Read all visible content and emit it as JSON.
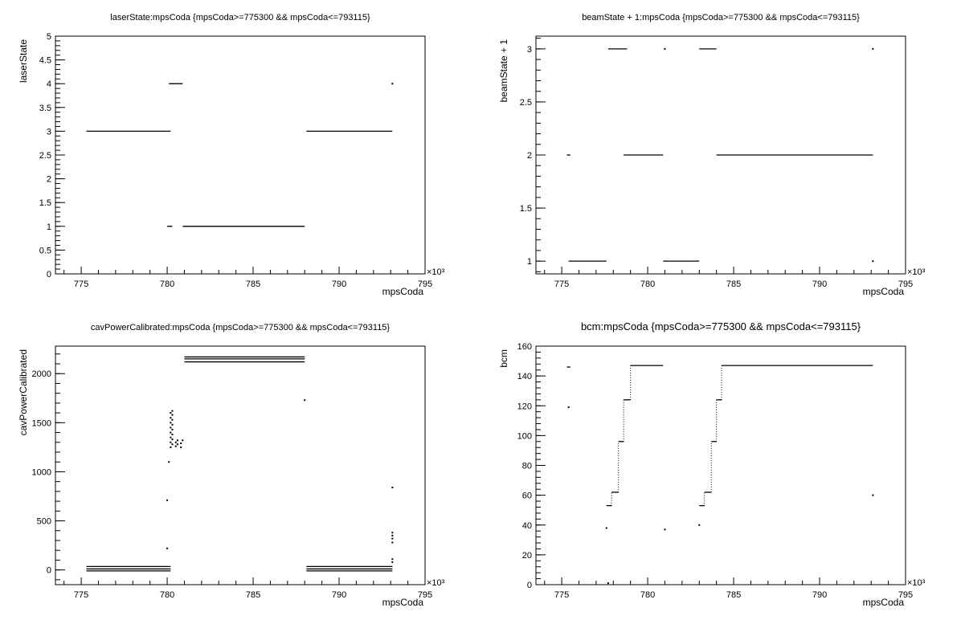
{
  "chart_data": [
    {
      "type": "scatter",
      "title": "laserState:mpsCoda {mpsCoda>=775300 && mpsCoda<=793115}",
      "xlabel": "mpsCoda",
      "ylabel": "laserState",
      "x_exponent": "×10³",
      "xlim": [
        773.5,
        795.0
      ],
      "ylim": [
        0,
        5
      ],
      "x_ticks": [
        "775",
        "780",
        "785",
        "790",
        "795"
      ],
      "y_ticks": [
        "0",
        "0.5",
        "1",
        "1.5",
        "2",
        "2.5",
        "3",
        "3.5",
        "4",
        "4.5",
        "5"
      ],
      "segments": [
        {
          "x": [
            775.3,
            780.2
          ],
          "y": 3
        },
        {
          "x": [
            780.0,
            780.3
          ],
          "y": 1
        },
        {
          "x": [
            780.1,
            780.9
          ],
          "y": 4
        },
        {
          "x": [
            780.9,
            788.0
          ],
          "y": 1
        },
        {
          "x": [
            788.1,
            793.1
          ],
          "y": 3
        }
      ],
      "points": [
        {
          "x": 793.1,
          "y": 4
        }
      ]
    },
    {
      "type": "scatter",
      "title": "beamState + 1:mpsCoda {mpsCoda>=775300 && mpsCoda<=793115}",
      "xlabel": "mpsCoda",
      "ylabel": "beamState + 1",
      "x_exponent": "×10³",
      "xlim": [
        773.5,
        795.0
      ],
      "ylim": [
        0.88,
        3.12
      ],
      "x_ticks": [
        "775",
        "780",
        "785",
        "790",
        "795"
      ],
      "y_ticks": [
        "1",
        "1.5",
        "2",
        "2.5",
        "3"
      ],
      "segments": [
        {
          "x": [
            775.3,
            775.5
          ],
          "y": 2
        },
        {
          "x": [
            775.4,
            777.6
          ],
          "y": 1
        },
        {
          "x": [
            777.7,
            778.8
          ],
          "y": 3
        },
        {
          "x": [
            778.6,
            780.9
          ],
          "y": 2
        },
        {
          "x": [
            780.9,
            783.0
          ],
          "y": 1
        },
        {
          "x": [
            783.0,
            784.0
          ],
          "y": 3
        },
        {
          "x": [
            784.0,
            793.1
          ],
          "y": 2
        }
      ],
      "points": [
        {
          "x": 781.0,
          "y": 3
        },
        {
          "x": 793.1,
          "y": 3
        },
        {
          "x": 793.1,
          "y": 1
        }
      ]
    },
    {
      "type": "scatter",
      "title": "cavPowerCalibrated:mpsCoda {mpsCoda>=775300 && mpsCoda<=793115}",
      "xlabel": "mpsCoda",
      "ylabel": "cavPowerCalibrated",
      "x_exponent": "×10³",
      "xlim": [
        773.5,
        795.0
      ],
      "ylim": [
        -150,
        2280
      ],
      "x_ticks": [
        "775",
        "780",
        "785",
        "790",
        "795"
      ],
      "y_ticks": [
        "0",
        "500",
        "1000",
        "1500",
        "2000"
      ],
      "segments": [
        {
          "x": [
            775.3,
            780.2
          ],
          "y": 35
        },
        {
          "x": [
            775.3,
            780.2
          ],
          "y": 10
        },
        {
          "x": [
            775.3,
            780.2
          ],
          "y": -10
        },
        {
          "x": [
            781.0,
            788.0
          ],
          "y": 2170
        },
        {
          "x": [
            781.0,
            788.0
          ],
          "y": 2150
        },
        {
          "x": [
            781.0,
            788.0
          ],
          "y": 2120
        },
        {
          "x": [
            788.1,
            793.1
          ],
          "y": 35
        },
        {
          "x": [
            788.1,
            793.1
          ],
          "y": 10
        },
        {
          "x": [
            788.1,
            793.1
          ],
          "y": -10
        }
      ],
      "points": [
        {
          "x": 780.0,
          "y": 220
        },
        {
          "x": 780.0,
          "y": 710
        },
        {
          "x": 780.1,
          "y": 1100
        },
        {
          "x": 780.2,
          "y": 1250
        },
        {
          "x": 780.2,
          "y": 1300
        },
        {
          "x": 780.2,
          "y": 1350
        },
        {
          "x": 780.2,
          "y": 1400
        },
        {
          "x": 780.2,
          "y": 1450
        },
        {
          "x": 780.2,
          "y": 1500
        },
        {
          "x": 780.2,
          "y": 1550
        },
        {
          "x": 780.2,
          "y": 1600
        },
        {
          "x": 780.3,
          "y": 1620
        },
        {
          "x": 780.3,
          "y": 1580
        },
        {
          "x": 780.3,
          "y": 1530
        },
        {
          "x": 780.3,
          "y": 1480
        },
        {
          "x": 780.3,
          "y": 1430
        },
        {
          "x": 780.3,
          "y": 1380
        },
        {
          "x": 780.3,
          "y": 1330
        },
        {
          "x": 780.3,
          "y": 1280
        },
        {
          "x": 780.5,
          "y": 1260
        },
        {
          "x": 780.5,
          "y": 1300
        },
        {
          "x": 780.6,
          "y": 1280
        },
        {
          "x": 780.6,
          "y": 1320
        },
        {
          "x": 780.8,
          "y": 1290
        },
        {
          "x": 780.8,
          "y": 1250
        },
        {
          "x": 780.9,
          "y": 1320
        },
        {
          "x": 788.0,
          "y": 1730
        },
        {
          "x": 793.1,
          "y": 840
        },
        {
          "x": 793.1,
          "y": 380
        },
        {
          "x": 793.1,
          "y": 350
        },
        {
          "x": 793.1,
          "y": 320
        },
        {
          "x": 793.1,
          "y": 280
        },
        {
          "x": 793.1,
          "y": 110
        },
        {
          "x": 793.1,
          "y": 80
        }
      ]
    },
    {
      "type": "scatter",
      "title": "bcm:mpsCoda {mpsCoda>=775300 && mpsCoda<=793115}",
      "xlabel": "mpsCoda",
      "ylabel": "bcm",
      "x_exponent": "×10³",
      "xlim": [
        773.5,
        795.0
      ],
      "ylim": [
        0,
        160
      ],
      "x_ticks": [
        "775",
        "780",
        "785",
        "790",
        "795"
      ],
      "y_ticks": [
        "0",
        "20",
        "40",
        "60",
        "80",
        "100",
        "120",
        "140",
        "160"
      ],
      "segments": [
        {
          "x": [
            775.3,
            775.5
          ],
          "y": 146
        },
        {
          "x": [
            777.6,
            777.9
          ],
          "y": 53
        },
        {
          "x": [
            777.9,
            778.3
          ],
          "y": 62
        },
        {
          "x": [
            778.3,
            778.6
          ],
          "y": 96
        },
        {
          "x": [
            778.6,
            779.0
          ],
          "y": 124
        },
        {
          "x": [
            779.0,
            780.9
          ],
          "y": 147
        },
        {
          "x": [
            783.0,
            783.3
          ],
          "y": 53
        },
        {
          "x": [
            783.3,
            783.7
          ],
          "y": 62
        },
        {
          "x": [
            783.7,
            784.0
          ],
          "y": 96
        },
        {
          "x": [
            784.0,
            784.3
          ],
          "y": 124
        },
        {
          "x": [
            784.3,
            793.1
          ],
          "y": 147
        }
      ],
      "verticals": [
        {
          "x": 777.9,
          "y": [
            53,
            62
          ]
        },
        {
          "x": 778.3,
          "y": [
            62,
            96
          ]
        },
        {
          "x": 778.6,
          "y": [
            96,
            124
          ]
        },
        {
          "x": 779.0,
          "y": [
            124,
            147
          ]
        },
        {
          "x": 783.3,
          "y": [
            53,
            62
          ]
        },
        {
          "x": 783.7,
          "y": [
            62,
            96
          ]
        },
        {
          "x": 784.0,
          "y": [
            96,
            124
          ]
        },
        {
          "x": 784.3,
          "y": [
            124,
            147
          ]
        }
      ],
      "points": [
        {
          "x": 775.4,
          "y": 119
        },
        {
          "x": 777.6,
          "y": 38
        },
        {
          "x": 777.7,
          "y": 1
        },
        {
          "x": 781.0,
          "y": 37
        },
        {
          "x": 783.0,
          "y": 40
        },
        {
          "x": 793.1,
          "y": 60
        }
      ]
    }
  ]
}
